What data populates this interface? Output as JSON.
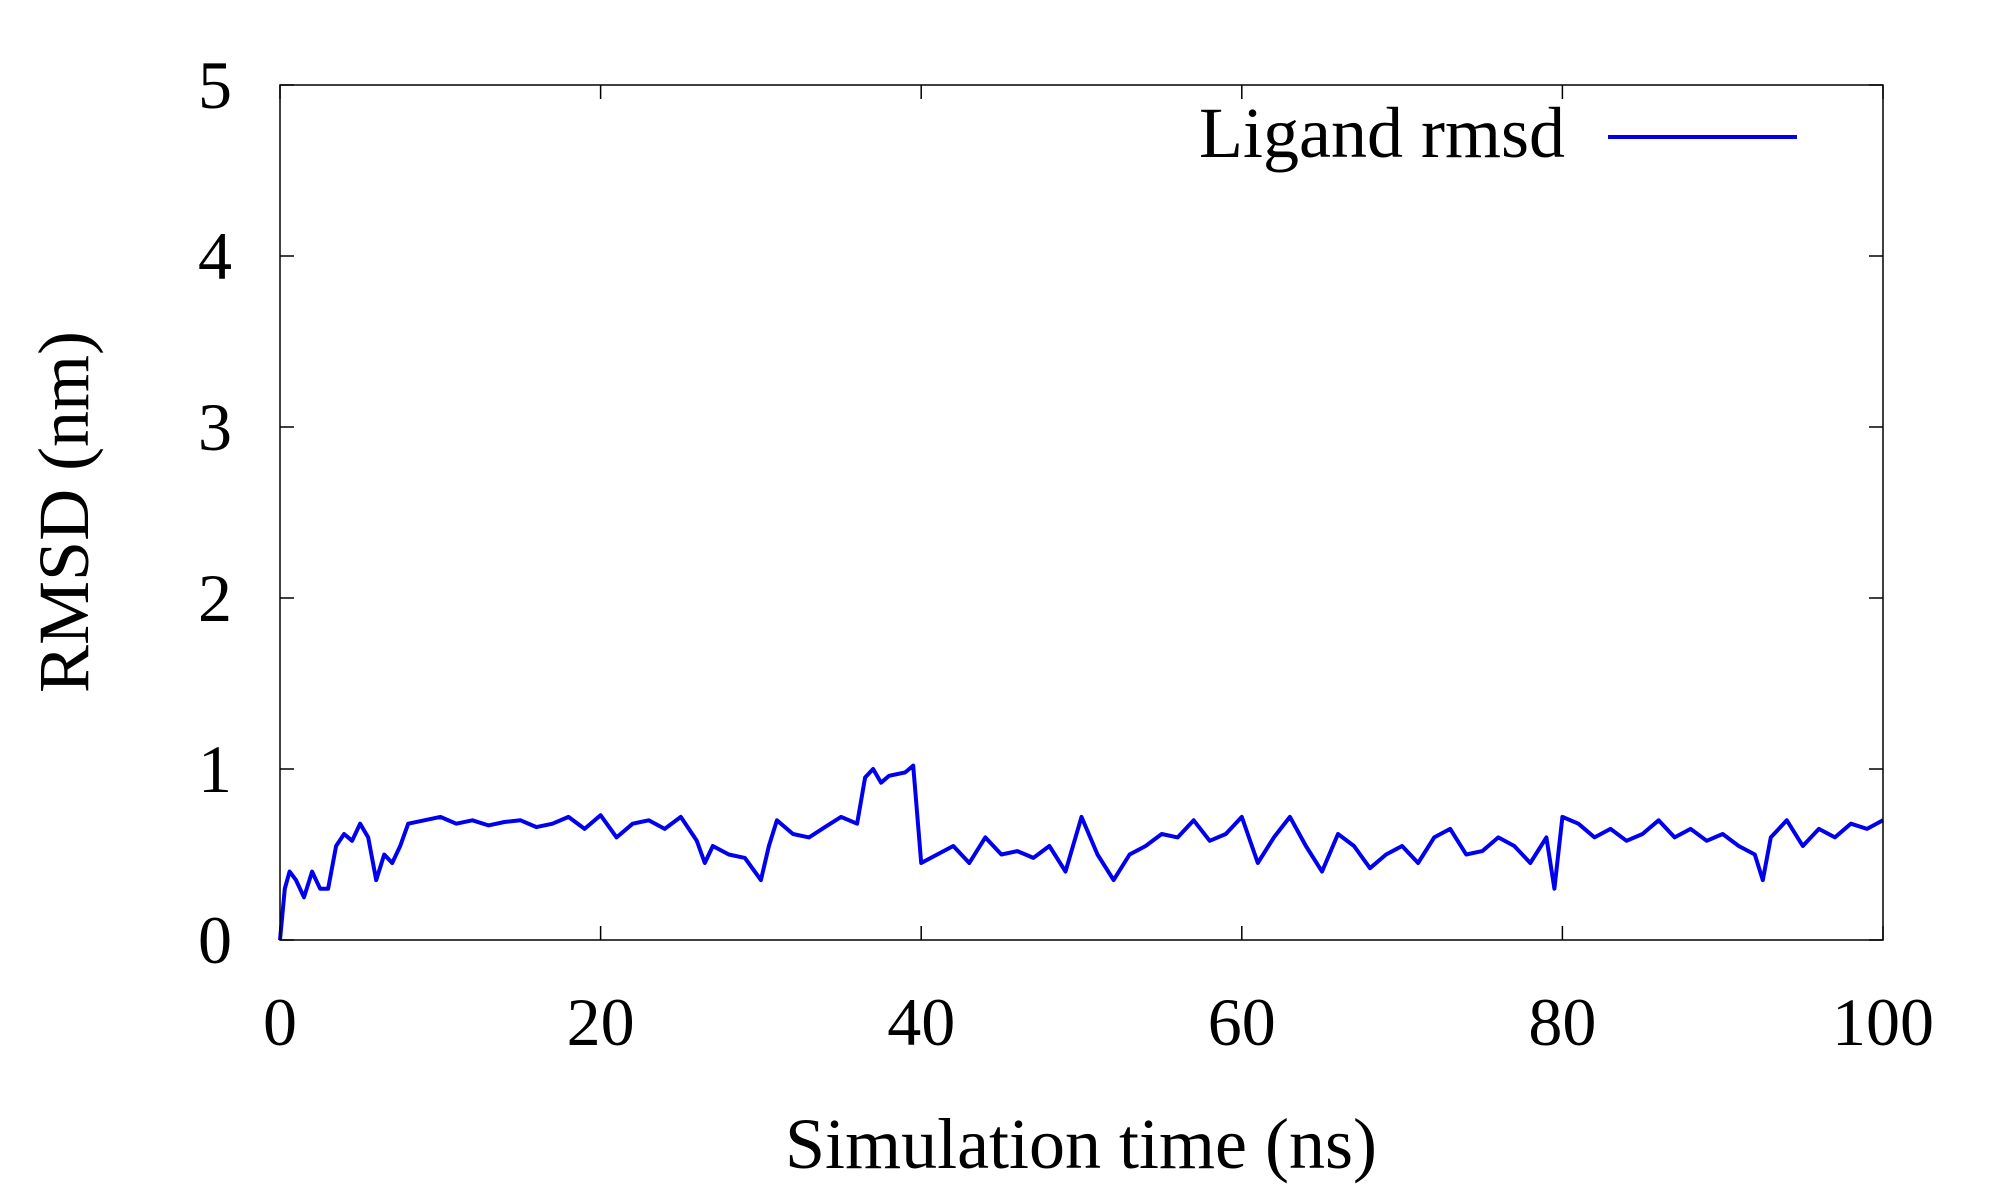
{
  "chart_data": {
    "type": "line",
    "title": "",
    "xlabel": "Simulation time (ns)",
    "ylabel": "RMSD (nm)",
    "xlim": [
      0,
      100
    ],
    "ylim": [
      0,
      5
    ],
    "xticks": [
      "0",
      "20",
      "40",
      "60",
      "80",
      "100"
    ],
    "yticks": [
      "0",
      "1",
      "2",
      "3",
      "4",
      "5"
    ],
    "grid": false,
    "legend_position": "top-right",
    "series": [
      {
        "name": "Ligand rmsd",
        "color": "#0000ee",
        "x": [
          0,
          0.3,
          0.6,
          1,
          1.5,
          2,
          2.5,
          3,
          3.5,
          4,
          4.5,
          5,
          5.5,
          6,
          6.5,
          7,
          7.5,
          8,
          9,
          10,
          11,
          12,
          13,
          14,
          15,
          16,
          17,
          18,
          19,
          20,
          21,
          22,
          23,
          24,
          25,
          26,
          26.5,
          27,
          28,
          29,
          30,
          30.5,
          31,
          32,
          33,
          34,
          35,
          36,
          36.5,
          37,
          37.5,
          38,
          39,
          39.5,
          40,
          41,
          42,
          43,
          44,
          45,
          46,
          47,
          48,
          49,
          50,
          51,
          52,
          53,
          54,
          55,
          56,
          57,
          58,
          59,
          60,
          61,
          62,
          63,
          64,
          65,
          66,
          67,
          68,
          69,
          70,
          71,
          72,
          73,
          74,
          75,
          76,
          77,
          78,
          79,
          79.5,
          80,
          81,
          82,
          83,
          84,
          85,
          86,
          87,
          88,
          89,
          90,
          91,
          92,
          92.5,
          93,
          94,
          95,
          96,
          97,
          98,
          99,
          100
        ],
        "values": [
          0.0,
          0.3,
          0.4,
          0.35,
          0.25,
          0.4,
          0.3,
          0.3,
          0.55,
          0.62,
          0.58,
          0.68,
          0.6,
          0.35,
          0.5,
          0.45,
          0.55,
          0.68,
          0.7,
          0.72,
          0.68,
          0.7,
          0.67,
          0.69,
          0.7,
          0.66,
          0.68,
          0.72,
          0.65,
          0.73,
          0.6,
          0.68,
          0.7,
          0.65,
          0.72,
          0.58,
          0.45,
          0.55,
          0.5,
          0.48,
          0.35,
          0.55,
          0.7,
          0.62,
          0.6,
          0.66,
          0.72,
          0.68,
          0.95,
          1.0,
          0.92,
          0.96,
          0.98,
          1.02,
          0.45,
          0.5,
          0.55,
          0.45,
          0.6,
          0.5,
          0.52,
          0.48,
          0.55,
          0.4,
          0.72,
          0.5,
          0.35,
          0.5,
          0.55,
          0.62,
          0.6,
          0.7,
          0.58,
          0.62,
          0.72,
          0.45,
          0.6,
          0.72,
          0.55,
          0.4,
          0.62,
          0.55,
          0.42,
          0.5,
          0.55,
          0.45,
          0.6,
          0.65,
          0.5,
          0.52,
          0.6,
          0.55,
          0.45,
          0.6,
          0.3,
          0.72,
          0.68,
          0.6,
          0.65,
          0.58,
          0.62,
          0.7,
          0.6,
          0.65,
          0.58,
          0.62,
          0.55,
          0.5,
          0.35,
          0.6,
          0.7,
          0.55,
          0.65,
          0.6,
          0.68,
          0.65,
          0.7
        ]
      }
    ]
  }
}
